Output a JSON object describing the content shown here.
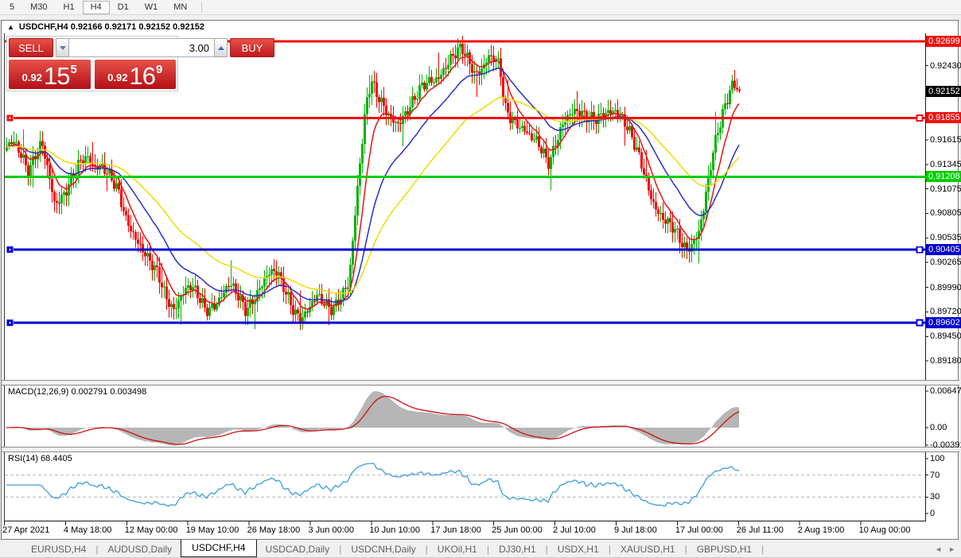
{
  "toolbar": {
    "timeframes": [
      "5",
      "M30",
      "H1",
      "H4",
      "D1",
      "W1",
      "MN"
    ],
    "active": "H4"
  },
  "window": {
    "title_marker": "▲",
    "chart_title": "USDCHF,H4  0.92166 0.92171 0.92152 0.92152"
  },
  "trade_panel": {
    "sell_label": "SELL",
    "buy_label": "BUY",
    "volume": "3.00",
    "sell_price": {
      "prefix": "0.92",
      "big": "15",
      "sup": "5"
    },
    "buy_price": {
      "prefix": "0.92",
      "big": "16",
      "sup": "9"
    }
  },
  "price_axis": {
    "plain_ticks": [
      {
        "label": "0.92430",
        "price": 0.9243
      },
      {
        "label": "0.91615",
        "price": 0.91615
      },
      {
        "label": "0.91345",
        "price": 0.91345
      },
      {
        "label": "0.91075",
        "price": 0.91075
      },
      {
        "label": "0.90805",
        "price": 0.90805
      },
      {
        "label": "0.90535",
        "price": 0.90535
      },
      {
        "label": "0.90265",
        "price": 0.90265
      },
      {
        "label": "0.89990",
        "price": 0.8999
      },
      {
        "label": "0.89720",
        "price": 0.8972
      },
      {
        "label": "0.89450",
        "price": 0.8945
      },
      {
        "label": "0.89180",
        "price": 0.8918
      }
    ],
    "current": {
      "label": "0.92152",
      "price": 0.92152,
      "bg": "#000000"
    }
  },
  "hlines": [
    {
      "label": "0.92699",
      "price": 0.92699,
      "color": "#ee1111",
      "handles": false
    },
    {
      "label": "0.91855",
      "price": 0.91855,
      "color": "#ee1111",
      "handles": true
    },
    {
      "label": "0.91208",
      "price": 0.91208,
      "color": "#00ce00",
      "handles": false
    },
    {
      "label": "0.90405",
      "price": 0.90405,
      "color": "#0000d0",
      "handles": true
    },
    {
      "label": "0.89602",
      "price": 0.89602,
      "color": "#0000d0",
      "handles": true
    }
  ],
  "macd_panel": {
    "label": "MACD(12,26,9) 0.002791 0.003498",
    "axis_max": "0.00647",
    "axis_zero": "0.00",
    "axis_min": "-0.003916",
    "hist_color": "#b6b6b6",
    "line_color": "#d01010"
  },
  "rsi_panel": {
    "label": "RSI(14) 68.4405",
    "axis": [
      "100",
      "70",
      "30",
      "0"
    ],
    "levels": [
      70,
      30
    ],
    "line_color": "#3a9fdc"
  },
  "time_axis": [
    "27 Apr 2021",
    "4 May 18:00",
    "12 May 00:00",
    "19 May 10:00",
    "26 May 18:00",
    "3 Jun 00:00",
    "10 Jun 10:00",
    "17 Jun 18:00",
    "25 Jun 00:00",
    "2 Jul 10:00",
    "9 Jul 18:00",
    "17 Jul 00:00",
    "26 Jul 11:00",
    "2 Aug 19:00",
    "10 Aug 00:00"
  ],
  "tabs": {
    "items": [
      "EURUSD,H4",
      "AUDUSD,Daily",
      "USDCHF,H4",
      "USDCAD,Daily",
      "USDCNH,Daily",
      "UKOil,H1",
      "DJ30,H1",
      "USDX,H1",
      "XAUUSD,H1",
      "GBPUSD,H1"
    ],
    "active": "USDCHF,H4",
    "scroll_left": "◄",
    "scroll_right": "►"
  },
  "chart_data": {
    "type": "candlestick",
    "symbol": "USDCHF",
    "timeframe": "H4",
    "ohlc_header": {
      "open": "0.92166",
      "high": "0.92171",
      "low": "0.92152",
      "close": "0.92152"
    },
    "last_close": 0.92152,
    "horizontal_levels": [
      0.92699,
      0.91855,
      0.91208,
      0.90405,
      0.89602
    ],
    "candle_colors": {
      "up": "#00b300",
      "down": "#f20000"
    },
    "ma_lines": [
      {
        "name": "ma-fast",
        "period": 9,
        "color": "#e81212"
      },
      {
        "name": "ma-mid",
        "period": 26,
        "color": "#2a2ec8"
      },
      {
        "name": "ma-slow",
        "period": 55,
        "color": "#efdc00"
      }
    ],
    "macd": {
      "fast": 12,
      "slow": 26,
      "signal": 9,
      "value": 0.002791,
      "signal_value": 0.003498
    },
    "rsi": {
      "period": 14,
      "value": 68.4405
    },
    "price_anchors": [
      [
        5,
        0.9152
      ],
      [
        15,
        0.9158
      ],
      [
        25,
        0.9145
      ],
      [
        35,
        0.9128
      ],
      [
        45,
        0.915
      ],
      [
        52,
        0.916
      ],
      [
        60,
        0.9125
      ],
      [
        68,
        0.9088
      ],
      [
        78,
        0.9098
      ],
      [
        88,
        0.912
      ],
      [
        98,
        0.9135
      ],
      [
        108,
        0.914
      ],
      [
        118,
        0.9128
      ],
      [
        128,
        0.9135
      ],
      [
        138,
        0.9125
      ],
      [
        148,
        0.9105
      ],
      [
        158,
        0.907
      ],
      [
        168,
        0.9055
      ],
      [
        178,
        0.9045
      ],
      [
        188,
        0.903
      ],
      [
        198,
        0.9012
      ],
      [
        208,
        0.8985
      ],
      [
        218,
        0.8975
      ],
      [
        228,
        0.8995
      ],
      [
        238,
        0.9002
      ],
      [
        248,
        0.8988
      ],
      [
        258,
        0.8972
      ],
      [
        268,
        0.898
      ],
      [
        278,
        0.8992
      ],
      [
        288,
        0.9002
      ],
      [
        298,
        0.8988
      ],
      [
        308,
        0.8975
      ],
      [
        318,
        0.8988
      ],
      [
        328,
        0.9002
      ],
      [
        338,
        0.9012
      ],
      [
        348,
        0.9015
      ],
      [
        358,
        0.8998
      ],
      [
        368,
        0.8978
      ],
      [
        378,
        0.8962
      ],
      [
        388,
        0.8972
      ],
      [
        398,
        0.899
      ],
      [
        408,
        0.8985
      ],
      [
        418,
        0.8976
      ],
      [
        428,
        0.8986
      ],
      [
        438,
        0.9
      ],
      [
        444,
        0.906
      ],
      [
        452,
        0.914
      ],
      [
        460,
        0.9205
      ],
      [
        466,
        0.9228
      ],
      [
        472,
        0.9212
      ],
      [
        480,
        0.9197
      ],
      [
        490,
        0.9185
      ],
      [
        500,
        0.9182
      ],
      [
        510,
        0.9193
      ],
      [
        520,
        0.9203
      ],
      [
        530,
        0.9218
      ],
      [
        540,
        0.9228
      ],
      [
        550,
        0.9232
      ],
      [
        560,
        0.9242
      ],
      [
        570,
        0.9252
      ],
      [
        580,
        0.9262
      ],
      [
        588,
        0.9252
      ],
      [
        596,
        0.9238
      ],
      [
        604,
        0.9238
      ],
      [
        612,
        0.9248
      ],
      [
        620,
        0.925
      ],
      [
        628,
        0.9242
      ],
      [
        634,
        0.92
      ],
      [
        642,
        0.9188
      ],
      [
        650,
        0.9178
      ],
      [
        658,
        0.917
      ],
      [
        666,
        0.9162
      ],
      [
        674,
        0.916
      ],
      [
        682,
        0.9152
      ],
      [
        688,
        0.9138
      ],
      [
        694,
        0.9148
      ],
      [
        702,
        0.9165
      ],
      [
        710,
        0.918
      ],
      [
        718,
        0.919
      ],
      [
        726,
        0.9196
      ],
      [
        734,
        0.9192
      ],
      [
        742,
        0.9186
      ],
      [
        750,
        0.9182
      ],
      [
        758,
        0.9186
      ],
      [
        766,
        0.9192
      ],
      [
        774,
        0.9196
      ],
      [
        782,
        0.9188
      ],
      [
        790,
        0.9172
      ],
      [
        798,
        0.9152
      ],
      [
        806,
        0.9132
      ],
      [
        814,
        0.911
      ],
      [
        822,
        0.9092
      ],
      [
        830,
        0.908
      ],
      [
        838,
        0.907
      ],
      [
        846,
        0.9062
      ],
      [
        854,
        0.905
      ],
      [
        862,
        0.9042
      ],
      [
        870,
        0.905
      ],
      [
        878,
        0.9062
      ],
      [
        884,
        0.9085
      ],
      [
        890,
        0.9115
      ],
      [
        896,
        0.9145
      ],
      [
        902,
        0.917
      ],
      [
        908,
        0.9192
      ],
      [
        914,
        0.921
      ],
      [
        919,
        0.9226
      ],
      [
        924,
        0.9222
      ],
      [
        929,
        0.92152
      ]
    ]
  }
}
